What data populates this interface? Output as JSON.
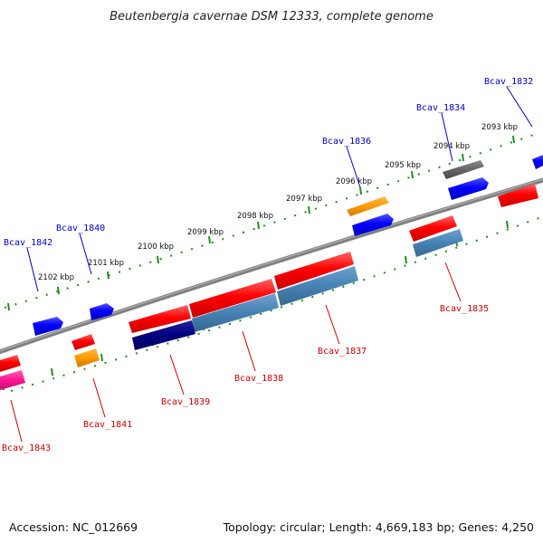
{
  "title": "Beutenbergia cavernae DSM 12333, complete genome",
  "footer": {
    "accession": "Accession: NC_012669",
    "summary": "Topology: circular; Length: 4,669,183 bp; Genes: 4,250"
  },
  "colors": {
    "forward_label": "#0000cc",
    "reverse_label": "#cc0000",
    "backbone": "#808080",
    "ticks": "#228B22",
    "red": "#ff0000",
    "blue": "#0000ff",
    "steel": "#4682b4",
    "navy": "#000080",
    "orange": "#ff9900",
    "gray": "#666666",
    "pink": "#ff1493"
  },
  "scale_labels": [
    "2093 kbp",
    "2094 kbp",
    "2095 kbp",
    "2096 kbp",
    "2097 kbp",
    "2098 kbp",
    "2099 kbp",
    "2100 kbp",
    "2101 kbp",
    "2102 kbp"
  ],
  "gene_labels_forward": [
    "Bcav_1832",
    "Bcav_1834",
    "Bcav_1836",
    "Bcav_1840",
    "Bcav_1842"
  ],
  "gene_labels_reverse": [
    "Bcav_1835",
    "Bcav_1837",
    "Bcav_1838",
    "Bcav_1839",
    "Bcav_1841",
    "Bcav_1843"
  ]
}
